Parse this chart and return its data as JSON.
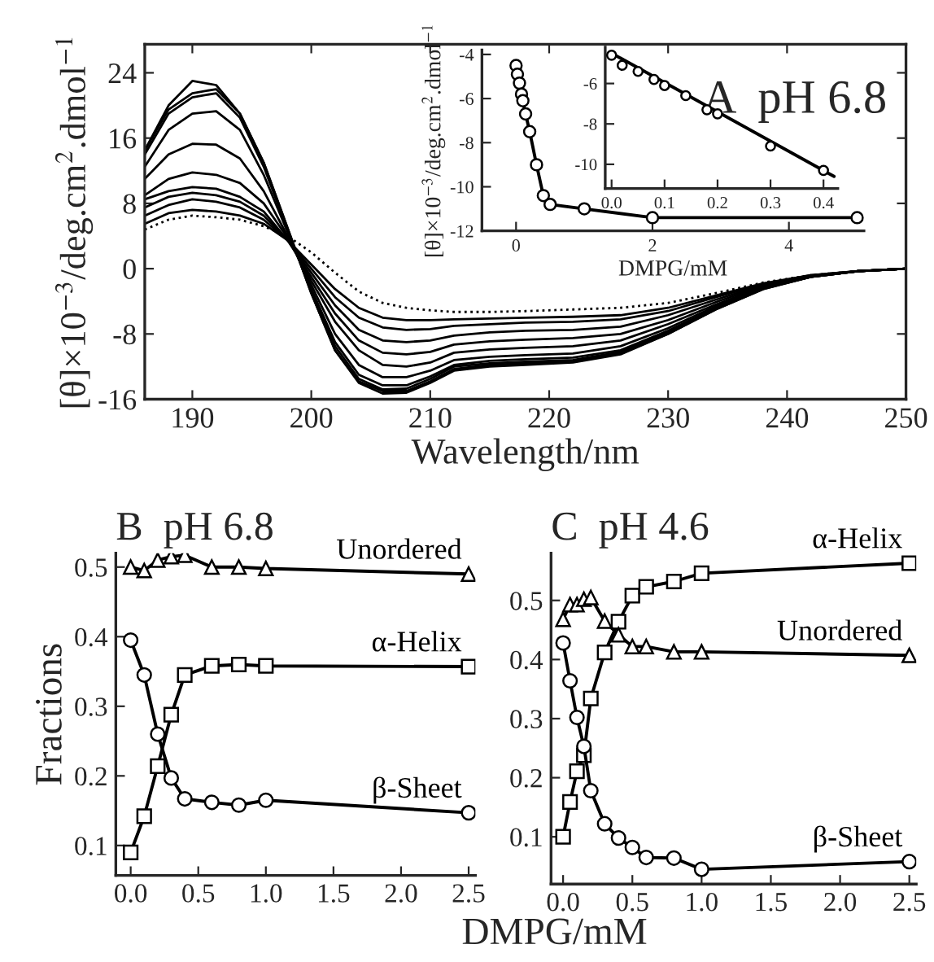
{
  "chart_data": [
    {
      "type": "line",
      "title": "A  pH 6.8",
      "xlabel": "Wavelength/nm",
      "ylabel": "[θ]×10$^{−3}$/deg.cm$^{2}$.dmol$^{−1}$",
      "xlim": [
        186,
        250
      ],
      "ylim": [
        -16,
        27.5
      ],
      "xticks": [
        190,
        200,
        210,
        220,
        230,
        240,
        250
      ],
      "yticks": [
        -16,
        -8,
        0,
        8,
        16,
        24
      ],
      "x": [
        186,
        188,
        190,
        192,
        194,
        196,
        198,
        200,
        202,
        204,
        206,
        208,
        210,
        212,
        215,
        218,
        222,
        226,
        230,
        234,
        238,
        242,
        246,
        250
      ],
      "series": [
        {
          "color": "#000000",
          "line_style": "solid",
          "values": [
            14.5,
            20,
            23,
            22.5,
            19,
            13,
            5,
            -3,
            -10,
            -14,
            -15.3,
            -15.2,
            -14,
            -12.5,
            -12,
            -11.8,
            -11.5,
            -10.5,
            -8,
            -5,
            -2.5,
            -1,
            -0.3,
            0
          ]
        },
        {
          "color": "#000000",
          "line_style": "solid",
          "values": [
            14.5,
            19.5,
            21.5,
            22,
            19,
            13,
            5,
            -3,
            -10,
            -13.8,
            -15,
            -15,
            -13.8,
            -12.3,
            -11.8,
            -11.6,
            -11.4,
            -10.4,
            -8,
            -5,
            -2.5,
            -1,
            -0.3,
            0
          ]
        },
        {
          "color": "#000000",
          "line_style": "solid",
          "values": [
            14,
            19,
            21,
            21.5,
            18.5,
            12.5,
            4.8,
            -2.8,
            -9.5,
            -13.5,
            -14.8,
            -14.7,
            -13.5,
            -12,
            -11.6,
            -11.4,
            -11.2,
            -10.2,
            -7.8,
            -4.9,
            -2.4,
            -1,
            -0.3,
            0
          ]
        },
        {
          "color": "#000000",
          "line_style": "solid",
          "values": [
            12.5,
            17,
            19,
            19.3,
            17,
            11.5,
            4.5,
            -2.5,
            -9,
            -13,
            -14.3,
            -14.3,
            -13.2,
            -11.8,
            -11.3,
            -11.1,
            -10.9,
            -10,
            -7.6,
            -4.8,
            -2.4,
            -1,
            -0.3,
            0
          ]
        },
        {
          "color": "#000000",
          "line_style": "solid",
          "values": [
            11,
            14,
            15.3,
            15.2,
            13.5,
            9.5,
            4,
            -2,
            -8,
            -11.8,
            -13.3,
            -13.3,
            -12.5,
            -11.2,
            -10.8,
            -10.6,
            -10.4,
            -9.5,
            -7.3,
            -4.6,
            -2.3,
            -1,
            -0.3,
            0
          ]
        },
        {
          "color": "#000000",
          "line_style": "solid",
          "values": [
            9,
            11,
            11.8,
            11.5,
            10.5,
            8,
            3.8,
            -1.5,
            -6.5,
            -10,
            -11.8,
            -12,
            -11.5,
            -10.3,
            -9.9,
            -9.7,
            -9.5,
            -8.8,
            -6.8,
            -4.4,
            -2.2,
            -0.9,
            -0.3,
            0
          ]
        },
        {
          "color": "#000000",
          "line_style": "solid",
          "values": [
            8.5,
            9.5,
            10,
            9.8,
            8.8,
            7,
            3.5,
            -1,
            -5.5,
            -8.8,
            -10.3,
            -10.5,
            -10.2,
            -9.3,
            -8.9,
            -8.7,
            -8.5,
            -8,
            -6.3,
            -4.1,
            -2.1,
            -0.9,
            -0.3,
            0
          ]
        },
        {
          "color": "#000000",
          "line_style": "solid",
          "values": [
            7.5,
            8.8,
            9.3,
            9,
            8.2,
            6.5,
            3.5,
            -0.5,
            -4.5,
            -7.5,
            -8.8,
            -9,
            -8.8,
            -8.2,
            -7.8,
            -7.6,
            -7.5,
            -7.1,
            -5.7,
            -3.8,
            -2,
            -0.9,
            -0.3,
            0
          ]
        },
        {
          "color": "#000000",
          "line_style": "solid",
          "values": [
            6.5,
            7.8,
            8.5,
            8.2,
            7.5,
            6,
            3.5,
            0,
            -3.5,
            -6,
            -7.2,
            -7.5,
            -7.4,
            -7,
            -6.8,
            -6.6,
            -6.5,
            -6.2,
            -5.2,
            -3.5,
            -1.9,
            -0.8,
            -0.3,
            0
          ]
        },
        {
          "color": "#000000",
          "line_style": "solid",
          "values": [
            5.5,
            6.8,
            7.2,
            7,
            6.5,
            5.5,
            3.5,
            0.5,
            -2.5,
            -4.8,
            -6,
            -6.3,
            -6.3,
            -6.2,
            -6.1,
            -6,
            -5.9,
            -5.7,
            -4.8,
            -3.3,
            -1.8,
            -0.8,
            -0.3,
            0
          ]
        },
        {
          "color": "#000000",
          "line_style": "dotted",
          "values": [
            4.8,
            6,
            6.5,
            6.3,
            6,
            5.2,
            4,
            2,
            -0.5,
            -2.8,
            -4.2,
            -4.8,
            -5.1,
            -5.3,
            -5.3,
            -5.2,
            -5,
            -4.8,
            -4.2,
            -3,
            -1.7,
            -0.8,
            -0.3,
            0
          ]
        }
      ]
    },
    {
      "type": "line",
      "xlabel": "DMPG/mM",
      "ylabel": "[θ]×10$^{−3}$/deg.cm$^{2}$.dmol$^{−1}$",
      "xlim": [
        -0.5,
        5.1
      ],
      "ylim": [
        -12,
        -3.8
      ],
      "xticks": [
        0,
        2,
        4
      ],
      "yticks": [
        -12,
        -10,
        -8,
        -6,
        -4
      ],
      "x": [
        0,
        0.02,
        0.05,
        0.08,
        0.1,
        0.14,
        0.2,
        0.3,
        0.4,
        0.5,
        1,
        2,
        5
      ],
      "series": [
        {
          "color": "#000000",
          "marker": "circle",
          "line_style": "solid",
          "values": [
            -4.5,
            -4.9,
            -5.3,
            -5.8,
            -6.1,
            -6.7,
            -7.5,
            -9,
            -10.4,
            -10.8,
            -11,
            -11.4,
            -11.4
          ]
        }
      ]
    },
    {
      "type": "line",
      "xlim": [
        -0.012,
        0.427
      ],
      "ylim": [
        -11.2,
        -4.2
      ],
      "xticks": [
        {
          "value": 0,
          "label": "0.0"
        },
        0.1,
        0.2,
        0.3,
        0.4
      ],
      "yticks": [
        -10,
        -8,
        -6
      ],
      "series": [
        {
          "type": "scatter",
          "color": "#000000",
          "marker": "circle",
          "x": [
            0,
            0.02,
            0.05,
            0.08,
            0.1,
            0.14,
            0.18,
            0.2,
            0.3,
            0.4
          ],
          "values": [
            -4.6,
            -5.1,
            -5.4,
            -5.8,
            -6.1,
            -6.6,
            -7.3,
            -7.5,
            -9.1,
            -10.3
          ]
        },
        {
          "type": "line",
          "color": "#000000",
          "line_style": "solid",
          "x": [
            0,
            0.42
          ],
          "values": [
            -4.5,
            -10.6
          ]
        }
      ]
    },
    {
      "type": "line",
      "title": "B  pH 6.8",
      "xlabel": "DMPG/mM",
      "ylabel": "Fractions",
      "xlim": [
        -0.11,
        2.55
      ],
      "ylim": [
        0.057,
        0.52
      ],
      "xticks": [
        {
          "value": 0,
          "label": "0.0"
        },
        0.5,
        {
          "value": 1,
          "label": "1.0"
        },
        1.5,
        {
          "value": 2,
          "label": "2.0"
        },
        2.5
      ],
      "yticks": [
        0.1,
        0.2,
        0.3,
        0.4,
        0.5
      ],
      "x": [
        0,
        0.1,
        0.2,
        0.3,
        0.4,
        0.6,
        0.8,
        1.0,
        2.5
      ],
      "series": [
        {
          "name": "Unordered",
          "color": "#000000",
          "marker": "triangle",
          "line_style": "solid",
          "values": [
            0.5,
            0.495,
            0.51,
            0.515,
            0.517,
            0.5,
            0.5,
            0.498,
            0.49
          ]
        },
        {
          "name": "α-Helix",
          "color": "#000000",
          "marker": "square",
          "line_style": "solid",
          "values": [
            0.09,
            0.142,
            0.214,
            0.288,
            0.345,
            0.358,
            0.36,
            0.358,
            0.357
          ]
        },
        {
          "name": "β-Sheet",
          "color": "#000000",
          "marker": "circle",
          "line_style": "solid",
          "values": [
            0.395,
            0.345,
            0.26,
            0.197,
            0.167,
            0.162,
            0.158,
            0.165,
            0.147
          ]
        }
      ]
    },
    {
      "type": "line",
      "title": "C  pH 4.6",
      "xlim": [
        -0.087,
        2.55
      ],
      "ylim": [
        0.02,
        0.58
      ],
      "xticks": [
        {
          "value": 0,
          "label": "0.0"
        },
        0.5,
        {
          "value": 1,
          "label": "1.0"
        },
        1.5,
        {
          "value": 2,
          "label": "2.0"
        },
        2.5
      ],
      "yticks": [
        0.1,
        0.2,
        0.3,
        0.4,
        0.5
      ],
      "x": [
        0,
        0.05,
        0.1,
        0.15,
        0.2,
        0.3,
        0.4,
        0.5,
        0.6,
        0.8,
        1.0,
        2.5
      ],
      "series": [
        {
          "name": "α-Helix",
          "color": "#000000",
          "marker": "square",
          "line_style": "solid",
          "values": [
            0.1,
            0.159,
            0.211,
            0.238,
            0.334,
            0.412,
            0.464,
            0.508,
            0.523,
            0.532,
            0.546,
            0.563
          ]
        },
        {
          "name": "Unordered",
          "color": "#000000",
          "marker": "triangle",
          "line_style": "solid",
          "values": [
            0.468,
            0.493,
            0.493,
            0.502,
            0.505,
            0.465,
            0.442,
            0.422,
            0.422,
            0.413,
            0.413,
            0.407
          ]
        },
        {
          "name": "β-Sheet",
          "color": "#000000",
          "marker": "circle",
          "line_style": "solid",
          "values": [
            0.428,
            0.364,
            0.302,
            0.253,
            0.178,
            0.122,
            0.098,
            0.082,
            0.065,
            0.064,
            0.045,
            0.058
          ]
        }
      ]
    }
  ]
}
